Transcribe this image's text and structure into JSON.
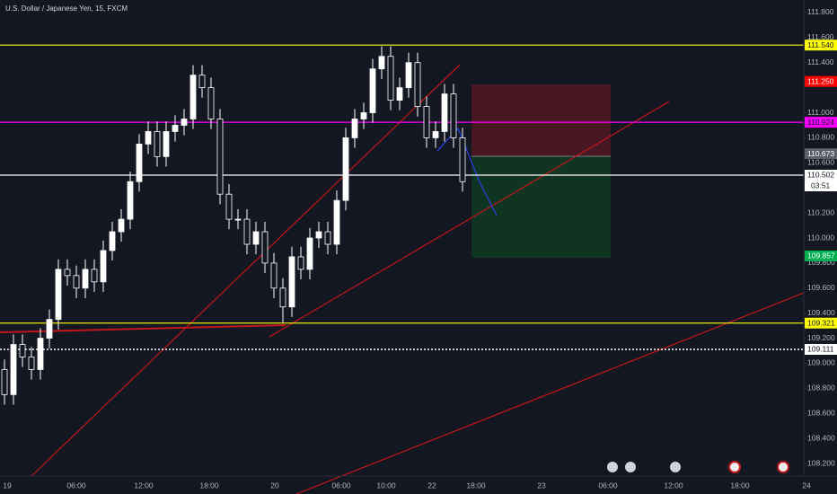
{
  "chart_data": {
    "type": "candlestick",
    "title": "U.S. Dollar / Japanese Yen, 15, FXCM",
    "ylim": [
      108.1,
      111.9
    ],
    "yticks": [
      {
        "value": 111.8,
        "label": "111.800"
      },
      {
        "value": 111.6,
        "label": "111.600"
      },
      {
        "value": 111.4,
        "label": "111.400"
      },
      {
        "value": 111,
        "label": "111.000"
      },
      {
        "value": 110.8,
        "label": "110.800"
      },
      {
        "value": 110.6,
        "label": "110.600"
      },
      {
        "value": 110.2,
        "label": "110.200"
      },
      {
        "value": 110,
        "label": "110.000"
      },
      {
        "value": 109.8,
        "label": "109.800"
      },
      {
        "value": 109.6,
        "label": "109.600"
      },
      {
        "value": 109.4,
        "label": "109.400"
      },
      {
        "value": 109.2,
        "label": "109.200"
      },
      {
        "value": 109,
        "label": "109.000"
      },
      {
        "value": 108.8,
        "label": "108.800"
      },
      {
        "value": 108.6,
        "label": "108.600"
      },
      {
        "value": 108.4,
        "label": "108.400"
      },
      {
        "value": 108.2,
        "label": "108.200"
      }
    ],
    "xlabels": [
      "19",
      "06:00",
      "12:00",
      "18:00",
      "20",
      "06:00",
      "10:00",
      "22",
      "18:00",
      "23",
      "06:00",
      "12:00",
      "18:00",
      "24"
    ],
    "up_color": "#ffffff",
    "down_color": "#131722",
    "open": [
      108.95,
      108.75,
      109.15,
      109.05,
      108.95,
      109.2,
      109.35,
      109.75,
      109.7,
      109.6,
      109.75,
      109.65,
      109.9,
      110.05,
      110.15,
      110.45,
      110.75,
      110.85,
      110.65,
      110.85,
      110.9,
      110.95,
      111.3,
      111.2,
      110.95,
      110.35,
      110.15,
      110.15,
      109.95,
      110.05,
      109.8,
      109.6,
      109.45,
      109.85,
      109.75,
      110.0,
      110.05,
      109.95,
      110.3,
      110.8,
      110.95,
      111.0,
      111.35,
      111.45,
      111.1,
      111.2,
      111.4,
      111.05,
      110.8,
      110.85,
      111.15,
      110.8
    ],
    "high": [
      109.03,
      109.23,
      109.23,
      109.13,
      109.28,
      109.43,
      109.83,
      109.83,
      109.78,
      109.83,
      109.83,
      109.98,
      110.13,
      110.23,
      110.53,
      110.83,
      110.93,
      110.93,
      110.93,
      110.98,
      111.03,
      111.38,
      111.38,
      111.28,
      111.03,
      110.43,
      110.23,
      110.23,
      110.13,
      110.13,
      109.88,
      109.68,
      109.93,
      109.93,
      110.08,
      110.13,
      110.13,
      110.38,
      110.88,
      111.03,
      111.08,
      111.43,
      111.53,
      111.53,
      111.28,
      111.48,
      111.48,
      111.13,
      110.93,
      111.23,
      111.23,
      110.88
    ],
    "low": [
      108.67,
      108.67,
      108.97,
      108.87,
      108.87,
      109.12,
      109.27,
      109.62,
      109.52,
      109.52,
      109.57,
      109.57,
      109.82,
      109.97,
      110.07,
      110.37,
      110.67,
      110.57,
      110.57,
      110.77,
      110.82,
      110.87,
      111.12,
      110.87,
      110.27,
      110.07,
      110.07,
      109.87,
      109.87,
      109.72,
      109.52,
      109.32,
      109.37,
      109.67,
      109.67,
      109.92,
      109.87,
      109.87,
      110.22,
      110.72,
      110.87,
      110.92,
      111.27,
      111.02,
      111.02,
      111.12,
      110.97,
      110.72,
      110.72,
      110.77,
      110.72,
      110.37
    ],
    "close": [
      108.75,
      109.15,
      109.05,
      108.95,
      109.2,
      109.35,
      109.75,
      109.7,
      109.6,
      109.75,
      109.65,
      109.9,
      110.05,
      110.15,
      110.45,
      110.75,
      110.85,
      110.65,
      110.85,
      110.9,
      110.95,
      111.3,
      111.2,
      110.95,
      110.35,
      110.15,
      110.15,
      109.95,
      110.05,
      109.8,
      109.6,
      109.45,
      109.85,
      109.75,
      110.0,
      110.05,
      109.95,
      110.3,
      110.8,
      110.95,
      111.0,
      111.35,
      111.45,
      111.1,
      111.2,
      111.4,
      111.05,
      110.8,
      110.85,
      111.15,
      110.8,
      110.45
    ],
    "levels": [
      {
        "value": 111.54,
        "label": "111.540",
        "color": "#ffff00",
        "text_color": "#131722",
        "style": "solid"
      },
      {
        "value": 111.25,
        "label": "111.250",
        "color": "#ff0000",
        "text_color": "#ffffff",
        "style": "none"
      },
      {
        "value": 110.924,
        "label": "110.924",
        "color": "#ff00ff",
        "text_color": "#131722",
        "style": "solid"
      },
      {
        "value": 110.673,
        "label": "110.673",
        "color": "#5d606b",
        "text_color": "#ffffff",
        "style": "none"
      },
      {
        "value": 110.502,
        "label": "110.502",
        "color": "#ffffff",
        "text_color": "#131722",
        "style": "solid"
      },
      {
        "value": 109.857,
        "label": "109.857",
        "color": "#00b050",
        "text_color": "#ffffff",
        "style": "none"
      },
      {
        "value": 109.321,
        "label": "109.321",
        "color": "#ffff00",
        "text_color": "#131722",
        "style": "solid"
      },
      {
        "value": 109.111,
        "label": "109.111",
        "color": "#ffffff",
        "text_color": "#131722",
        "style": "dotted"
      }
    ],
    "countdown": "03:51"
  }
}
